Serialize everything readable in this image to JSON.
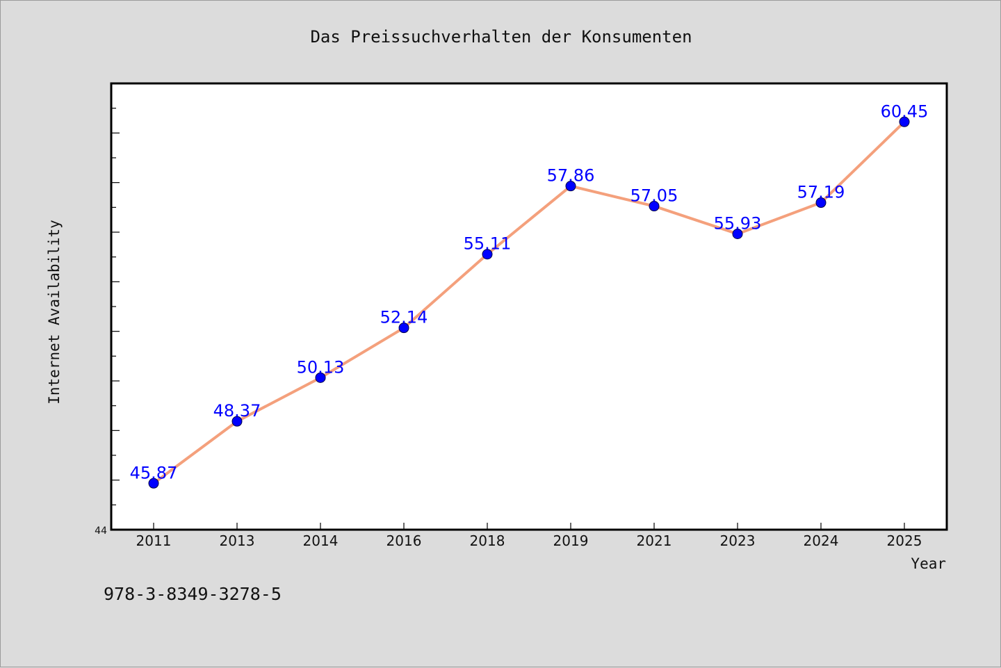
{
  "chart_data": {
    "type": "line",
    "title": "Das Preissuchverhalten der Konsumenten",
    "xlabel": "Year",
    "ylabel": "Internet Availability",
    "categories": [
      "2011",
      "2013",
      "2014",
      "2016",
      "2018",
      "2019",
      "2021",
      "2023",
      "2024",
      "2025"
    ],
    "series": [
      {
        "values": [
          45.87,
          48.37,
          50.13,
          52.14,
          55.11,
          57.86,
          57.05,
          55.93,
          57.19,
          60.45
        ],
        "data_labels": [
          "45.87",
          "48.37",
          "50.13",
          "52.14",
          "55.11",
          "57.86",
          "57.05",
          "55.93",
          "57.19",
          "60.45"
        ]
      }
    ],
    "ylim": [
      44,
      62
    ],
    "y_tick_labels": [
      {
        "value": 44,
        "label": "44"
      }
    ],
    "y_minor_step": 1,
    "grid": false,
    "legend": "none",
    "colors": {
      "line": "#f4a07c",
      "marker": "#0000ff",
      "marker_edge": "#000044",
      "data_label": "#0000ff",
      "plot_background": "#ffffff",
      "figure_background": "#dcdcdc"
    }
  },
  "footnote": "978-3-8349-3278-5"
}
